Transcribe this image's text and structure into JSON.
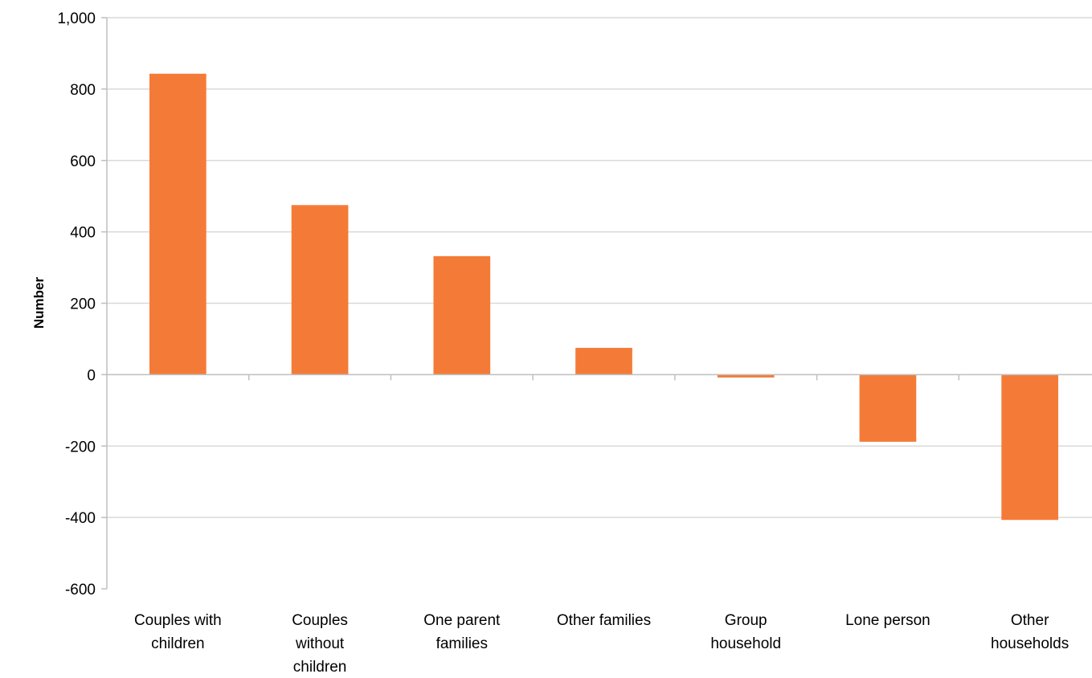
{
  "chart_data": {
    "type": "bar",
    "title": "",
    "xlabel": "",
    "ylabel": "Number",
    "ylim": [
      -600,
      1000
    ],
    "yticks": [
      1000,
      800,
      600,
      400,
      200,
      0,
      -200,
      -400,
      -600
    ],
    "ytick_labels": [
      "1,000",
      "800",
      "600",
      "400",
      "200",
      "0",
      "-200",
      "-400",
      "-600"
    ],
    "categories": [
      [
        "Couples with",
        "children"
      ],
      [
        "Couples",
        "without",
        "children"
      ],
      [
        "One parent",
        "families"
      ],
      [
        "Other families"
      ],
      [
        "Group",
        "household"
      ],
      [
        "Lone person"
      ],
      [
        "Other",
        "households"
      ]
    ],
    "values": [
      843,
      475,
      332,
      75,
      -8,
      -188,
      -407
    ],
    "grid": true,
    "legend": "none",
    "bar_color": "#F47B37",
    "grid_color": "#D9D9D9",
    "axis_color": "#BFBFBF"
  }
}
